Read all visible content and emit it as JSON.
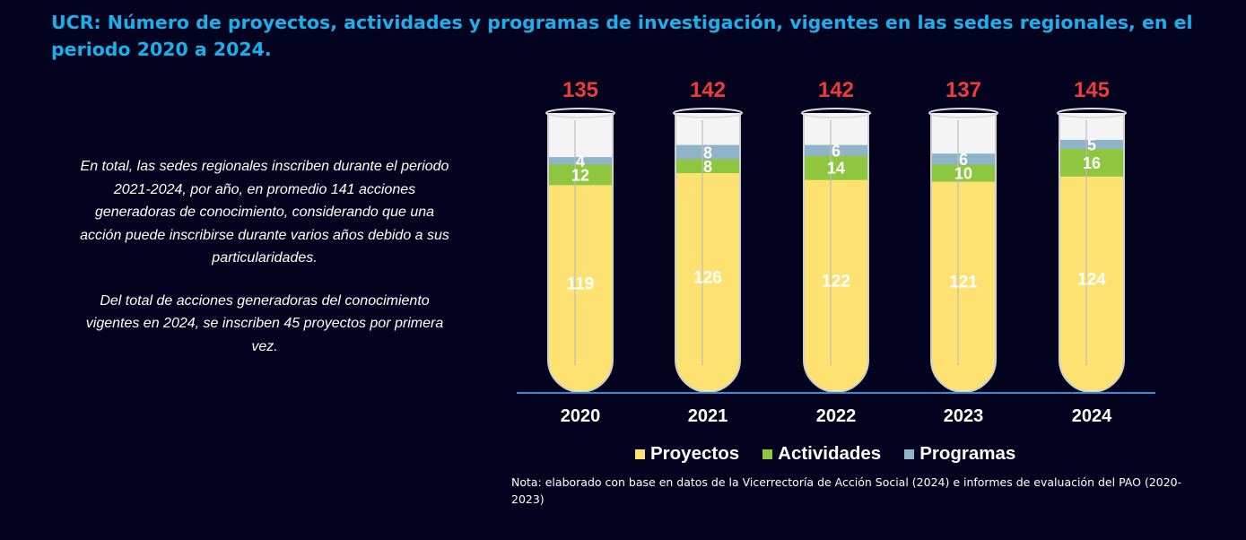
{
  "title": "UCR: Número de proyectos, actividades y programas de investigación, vigentes en las sedes regionales, en el periodo 2020 a 2024.",
  "summary": {
    "paragraph1": "En total, las sedes regionales inscriben durante el periodo 2021-2024, por año, en promedio 141 acciones generadoras de conocimiento, considerando que una acción puede inscribirse durante varios años debido a sus particularidades.",
    "paragraph2": "Del total de acciones generadoras del conocimiento vigentes en 2024, se inscriben 45 proyectos por primera vez."
  },
  "note": "Nota: elaborado con base en datos de la Vicerrectoría de Acción Social (2024) e informes de evaluación del PAO (2020-2023)",
  "colors": {
    "background": "#03031f",
    "title": "#1ab0ec",
    "total": "#ef3b3b",
    "proyectos": "#fde272",
    "actividades": "#8ec63f",
    "programas": "#8fb3c9",
    "baseline": "#2f8fd6"
  },
  "chart_data": {
    "type": "bar",
    "stacked": true,
    "categories": [
      "2020",
      "2021",
      "2022",
      "2023",
      "2024"
    ],
    "series": [
      {
        "name": "Proyectos",
        "values": [
          119,
          126,
          122,
          121,
          124
        ]
      },
      {
        "name": "Actividades",
        "values": [
          12,
          8,
          14,
          10,
          16
        ]
      },
      {
        "name": "Programas",
        "values": [
          4,
          8,
          6,
          6,
          5
        ]
      }
    ],
    "totals": [
      135,
      142,
      142,
      137,
      145
    ],
    "legend": "bottom",
    "grid": false
  }
}
